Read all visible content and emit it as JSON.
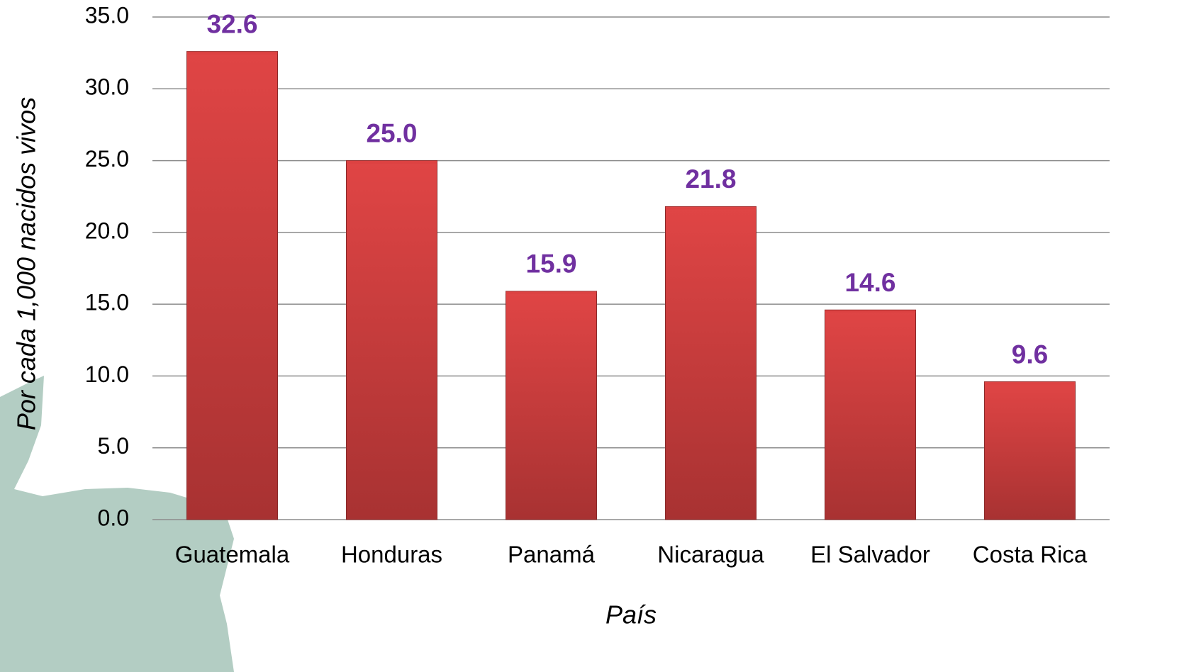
{
  "chart_data": {
    "type": "bar",
    "categories": [
      "Guatemala",
      "Honduras",
      "Panamá",
      "Nicaragua",
      "El Salvador",
      "Costa Rica"
    ],
    "values": [
      32.6,
      25.0,
      15.9,
      21.8,
      14.6,
      9.6
    ],
    "value_labels": [
      "32.6",
      "25.0",
      "15.9",
      "21.8",
      "14.6",
      "9.6"
    ],
    "color": "#d94040",
    "x_label": "País",
    "y_label": "Por cada 1,000 nacidos vivos",
    "ylim": [
      0,
      35
    ],
    "yticks": [
      {
        "value": 0,
        "label": "0.0"
      },
      {
        "value": 5,
        "label": "5.0"
      },
      {
        "value": 10,
        "label": "10.0"
      },
      {
        "value": 15,
        "label": "15.0"
      },
      {
        "value": 20,
        "label": "20.0"
      },
      {
        "value": 25,
        "label": "25.0"
      },
      {
        "value": 30,
        "label": "30.0"
      },
      {
        "value": 35,
        "label": "35.0"
      }
    ],
    "grid": true
  }
}
